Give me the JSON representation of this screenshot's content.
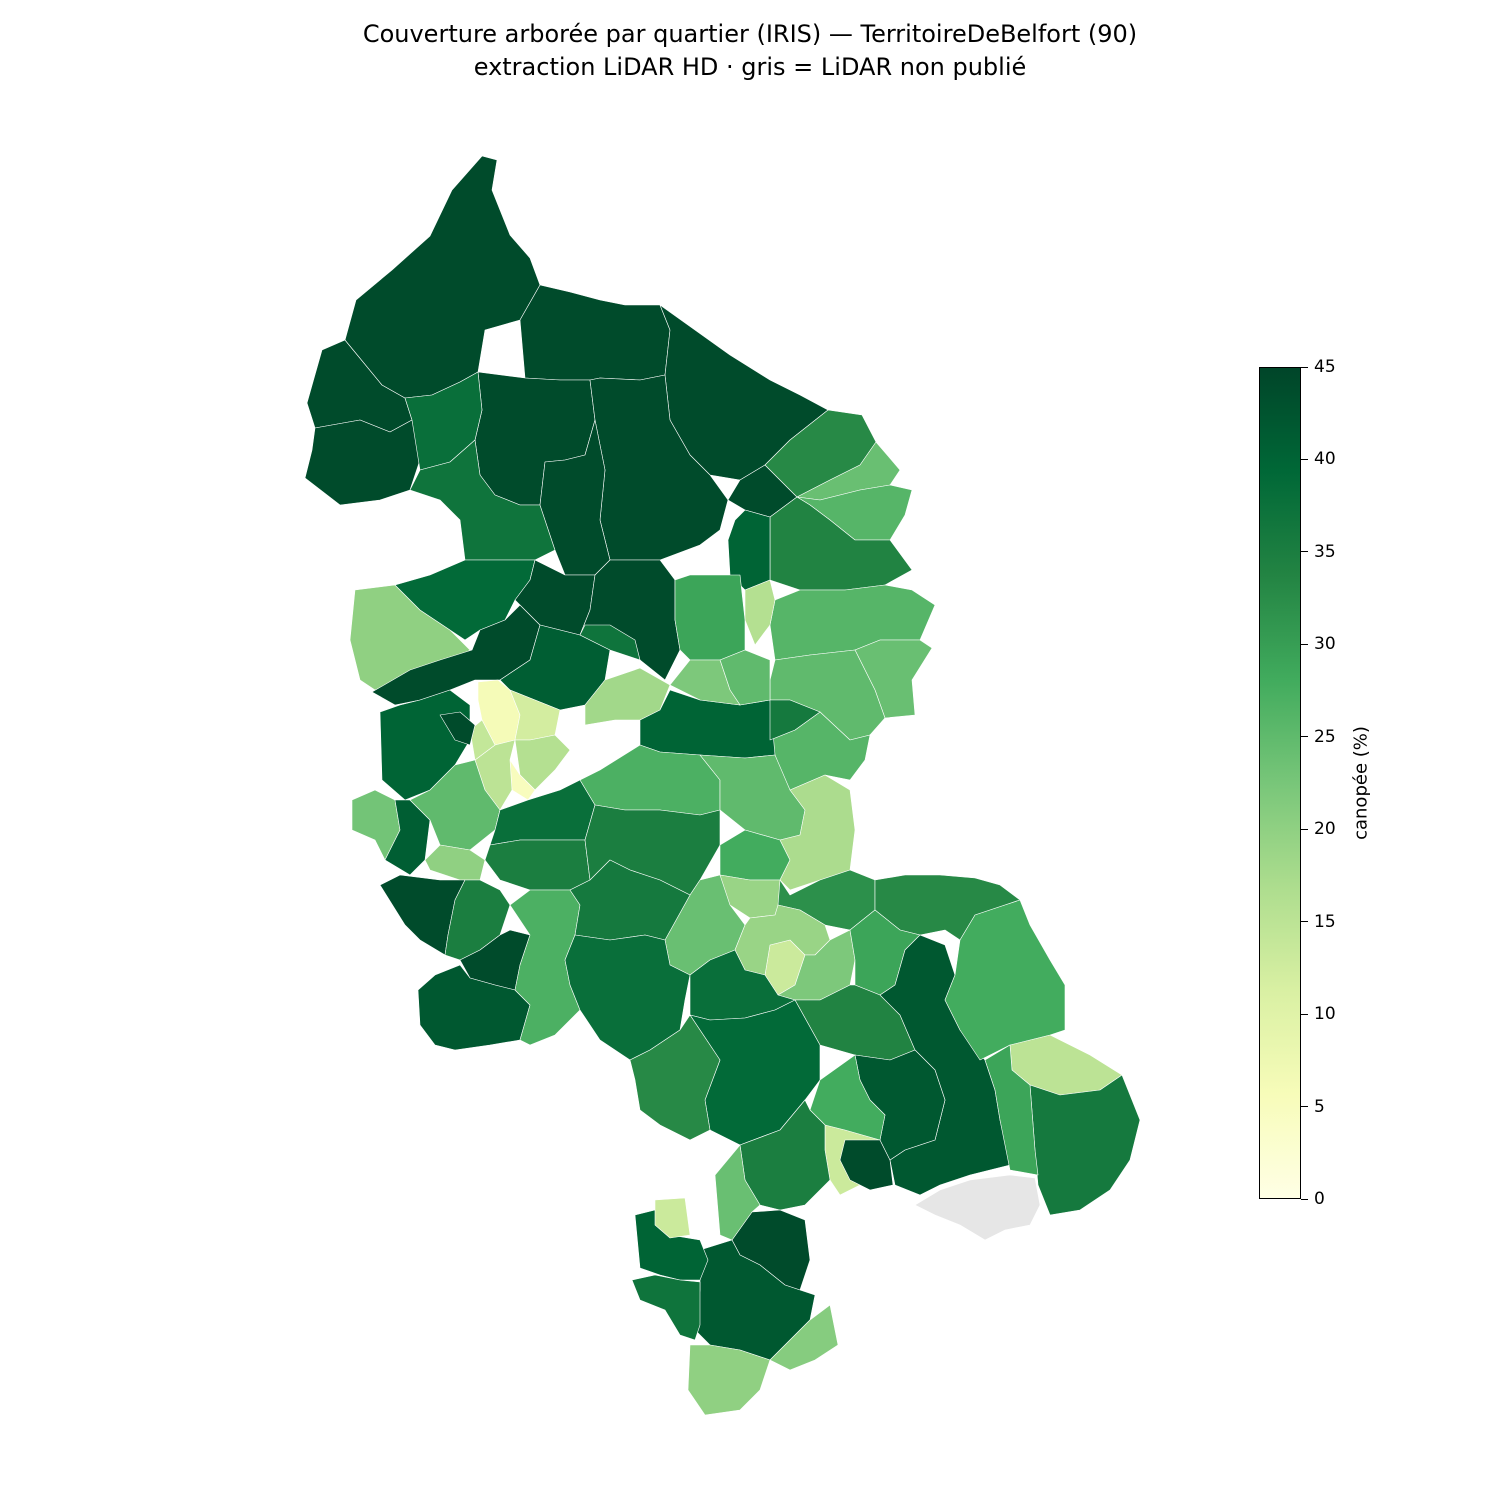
{
  "figure": {
    "title_line1": "Couverture arborée par quartier (IRIS) — TerritoireDeBelfort (90)",
    "title_line2": "extraction LiDAR HD · gris = LiDAR non publié"
  },
  "colorbar": {
    "label": "canopée (%)",
    "min": 0,
    "max": 45,
    "ticks": [
      "0",
      "5",
      "10",
      "15",
      "20",
      "25",
      "30",
      "35",
      "40",
      "45"
    ],
    "colormap": "YlGn",
    "gradient_stops": [
      "#ffffe5",
      "#f7fcb9",
      "#d9f0a3",
      "#addd8e",
      "#78c679",
      "#41ab5d",
      "#238443",
      "#006837",
      "#004529"
    ]
  },
  "legend": {
    "no_data_color": "#e6e6e6"
  },
  "chart_data": {
    "type": "choropleth",
    "title": "Couverture arborée par quartier (IRIS) — TerritoireDeBelfort (90)",
    "subtitle": "extraction LiDAR HD · gris = LiDAR non publié",
    "value_label": "canopée (%)",
    "range": [
      0,
      45
    ],
    "colormap": "YlGn",
    "no_data_color": "#e6e6e6",
    "regions": [
      {
        "zone": "north-far-west",
        "canopy_pct": 44
      },
      {
        "zone": "north-summit",
        "canopy_pct": 44
      },
      {
        "zone": "north-west-upper",
        "canopy_pct": 44
      },
      {
        "zone": "north-center-upper",
        "canopy_pct": 44
      },
      {
        "zone": "north-center",
        "canopy_pct": 44
      },
      {
        "zone": "north-east",
        "canopy_pct": 44
      },
      {
        "zone": "north-east-small",
        "canopy_pct": 44
      },
      {
        "zone": "north-west-mid",
        "canopy_pct": 38
      },
      {
        "zone": "north-mid-west",
        "canopy_pct": 37
      },
      {
        "zone": "north-mid-center",
        "canopy_pct": 44
      },
      {
        "zone": "north-mid-center2",
        "canopy_pct": 44
      },
      {
        "zone": "north-east-green",
        "canopy_pct": 33
      },
      {
        "zone": "east-upper-a",
        "canopy_pct": 24
      },
      {
        "zone": "east-upper-b",
        "canopy_pct": 26
      },
      {
        "zone": "east-upper-c",
        "canopy_pct": 34
      },
      {
        "zone": "east-mid-a",
        "canopy_pct": 26
      },
      {
        "zone": "east-mid-b",
        "canopy_pct": 24
      },
      {
        "zone": "east-mid-c",
        "canopy_pct": 25
      },
      {
        "zone": "east-mid-d",
        "canopy_pct": 26
      },
      {
        "zone": "east-mid-light",
        "canopy_pct": 16
      },
      {
        "zone": "west-light",
        "canopy_pct": 20
      },
      {
        "zone": "center-west-a",
        "canopy_pct": 39
      },
      {
        "zone": "center-west-b",
        "canopy_pct": 44
      },
      {
        "zone": "center-dark-a",
        "canopy_pct": 44
      },
      {
        "zone": "center-dark-b",
        "canopy_pct": 44
      },
      {
        "zone": "center-a",
        "canopy_pct": 41
      },
      {
        "zone": "center-b",
        "canopy_pct": 37
      },
      {
        "zone": "center-c",
        "canopy_pct": 18
      },
      {
        "zone": "center-d",
        "canopy_pct": 40
      },
      {
        "zone": "center-e",
        "canopy_pct": 36
      },
      {
        "zone": "center-f",
        "canopy_pct": 29
      },
      {
        "zone": "center-g",
        "canopy_pct": 25
      },
      {
        "zone": "center-h",
        "canopy_pct": 22
      },
      {
        "zone": "belfort-a",
        "canopy_pct": 6
      },
      {
        "zone": "belfort-b",
        "canopy_pct": 12
      },
      {
        "zone": "belfort-c",
        "canopy_pct": 16
      },
      {
        "zone": "belfort-d",
        "canopy_pct": 5
      },
      {
        "zone": "belfort-e",
        "canopy_pct": 15
      },
      {
        "zone": "belfort-f",
        "canopy_pct": 14
      },
      {
        "zone": "west-mid-a",
        "canopy_pct": 40
      },
      {
        "zone": "west-mid-b",
        "canopy_pct": 44
      },
      {
        "zone": "west-mid-c",
        "canopy_pct": 23
      },
      {
        "zone": "west-mid-d",
        "canopy_pct": 41
      },
      {
        "zone": "west-mid-e",
        "canopy_pct": 25
      },
      {
        "zone": "west-mid-f",
        "canopy_pct": 20
      },
      {
        "zone": "center-south-a",
        "canopy_pct": 38
      },
      {
        "zone": "center-south-b",
        "canopy_pct": 35
      },
      {
        "zone": "center-south-c",
        "canopy_pct": 27
      },
      {
        "zone": "center-south-d",
        "canopy_pct": 25
      },
      {
        "zone": "center-south-e",
        "canopy_pct": 35
      },
      {
        "zone": "center-south-f",
        "canopy_pct": 28
      },
      {
        "zone": "center-south-g",
        "canopy_pct": 19
      },
      {
        "zone": "center-south-h",
        "canopy_pct": 17
      },
      {
        "zone": "center-south-i",
        "canopy_pct": 13
      },
      {
        "zone": "center-south-j",
        "canopy_pct": 24
      },
      {
        "zone": "east-south-a",
        "canopy_pct": 32
      },
      {
        "zone": "east-south-b",
        "canopy_pct": 19
      },
      {
        "zone": "east-south-c",
        "canopy_pct": 22
      },
      {
        "zone": "east-south-d",
        "canopy_pct": 33
      },
      {
        "zone": "east-south-e",
        "canopy_pct": 29
      },
      {
        "zone": "east-south-light",
        "canopy_pct": 15
      },
      {
        "zone": "southwest-a",
        "canopy_pct": 44
      },
      {
        "zone": "southwest-b",
        "canopy_pct": 35
      },
      {
        "zone": "southwest-c",
        "canopy_pct": 44
      },
      {
        "zone": "southwest-d",
        "canopy_pct": 42
      },
      {
        "zone": "southwest-e",
        "canopy_pct": 27
      },
      {
        "zone": "south-center-a",
        "canopy_pct": 36
      },
      {
        "zone": "south-center-b",
        "canopy_pct": 38
      },
      {
        "zone": "south-center-c",
        "canopy_pct": 38
      },
      {
        "zone": "south-center-d",
        "canopy_pct": 34
      },
      {
        "zone": "south-center-e",
        "canopy_pct": 39
      },
      {
        "zone": "south-center-f",
        "canopy_pct": 33
      },
      {
        "zone": "south-east-dark",
        "canopy_pct": 42
      },
      {
        "zone": "south-east-a",
        "canopy_pct": 28
      },
      {
        "zone": "south-east-b",
        "canopy_pct": 36
      },
      {
        "zone": "south-east-c",
        "canopy_pct": 29
      },
      {
        "zone": "south-light-a",
        "canopy_pct": 13
      },
      {
        "zone": "south-dark-a",
        "canopy_pct": 44
      },
      {
        "zone": "south-dark-b",
        "canopy_pct": 42
      },
      {
        "zone": "south-a",
        "canopy_pct": 28
      },
      {
        "zone": "south-b",
        "canopy_pct": 35
      },
      {
        "zone": "south-c",
        "canopy_pct": 44
      },
      {
        "zone": "south-d",
        "canopy_pct": 42
      },
      {
        "zone": "south-e",
        "canopy_pct": 40
      },
      {
        "zone": "south-f",
        "canopy_pct": 37
      },
      {
        "zone": "south-g",
        "canopy_pct": 13
      },
      {
        "zone": "south-h",
        "canopy_pct": 20
      },
      {
        "zone": "south-i",
        "canopy_pct": 21
      },
      {
        "zone": "south-j",
        "canopy_pct": 24
      },
      {
        "zone": "southeast-no-lidar",
        "canopy_pct": null
      }
    ]
  }
}
